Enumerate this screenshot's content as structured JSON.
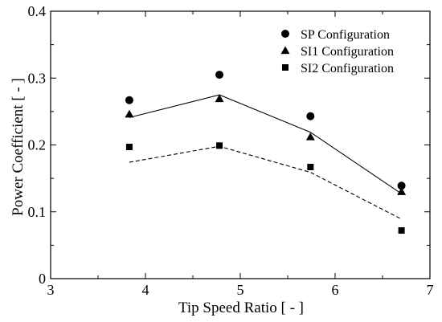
{
  "chart_data": {
    "type": "scatter",
    "title": "",
    "xlabel": "Tip Speed Ratio [ - ]",
    "ylabel": "Power Coefficient [ - ]",
    "xlim": [
      3,
      7
    ],
    "ylim": [
      0,
      0.4
    ],
    "x_ticks": [
      3,
      4,
      5,
      6,
      7
    ],
    "y_ticks": [
      0,
      0.1,
      0.2,
      0.3,
      0.4
    ],
    "x_tick_labels": [
      "3",
      "4",
      "5",
      "6",
      "7"
    ],
    "y_tick_labels": [
      "0",
      "0.1",
      "0.2",
      "0.3",
      "0.4"
    ],
    "grid": false,
    "legend_position": "top-right",
    "series": [
      {
        "name": "SP Configuration",
        "marker": "circle",
        "x": [
          3.83,
          4.78,
          5.74,
          6.7
        ],
        "y": [
          0.267,
          0.305,
          0.243,
          0.139
        ]
      },
      {
        "name": "SI1 Configuration",
        "marker": "triangle",
        "x": [
          3.83,
          4.78,
          5.74,
          6.7
        ],
        "y": [
          0.246,
          0.269,
          0.212,
          0.13
        ]
      },
      {
        "name": "SI2 Configuration",
        "marker": "square",
        "x": [
          3.83,
          4.78,
          5.74,
          6.7
        ],
        "y": [
          0.197,
          0.199,
          0.167,
          0.072
        ]
      }
    ],
    "lines": [
      {
        "style": "solid",
        "x": [
          3.83,
          4.78,
          5.74,
          6.7
        ],
        "y": [
          0.241,
          0.275,
          0.219,
          0.127
        ]
      },
      {
        "style": "dashed",
        "x": [
          3.83,
          4.78,
          5.74,
          6.7
        ],
        "y": [
          0.174,
          0.198,
          0.159,
          0.089
        ]
      }
    ]
  }
}
